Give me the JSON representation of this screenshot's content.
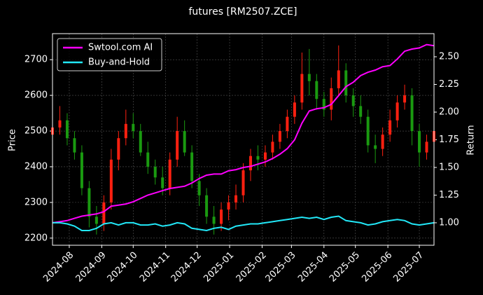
{
  "chart_data": {
    "type": "candlestick",
    "title": "futures [RM2507.ZCE]",
    "y_label": "Price",
    "y2_label": "Return",
    "x": [
      "2024-07-16",
      "2024-07-23",
      "2024-07-30",
      "2024-08-06",
      "2024-08-13",
      "2024-08-20",
      "2024-08-27",
      "2024-09-03",
      "2024-09-10",
      "2024-09-17",
      "2024-09-24",
      "2024-10-01",
      "2024-10-08",
      "2024-10-15",
      "2024-10-22",
      "2024-10-29",
      "2024-11-05",
      "2024-11-12",
      "2024-11-19",
      "2024-11-26",
      "2024-12-03",
      "2024-12-10",
      "2024-12-17",
      "2024-12-24",
      "2024-12-31",
      "2025-01-07",
      "2025-01-14",
      "2025-01-21",
      "2025-01-28",
      "2025-02-04",
      "2025-02-11",
      "2025-02-18",
      "2025-02-25",
      "2025-03-04",
      "2025-03-11",
      "2025-03-18",
      "2025-03-25",
      "2025-04-01",
      "2025-04-08",
      "2025-04-15",
      "2025-04-22",
      "2025-04-29",
      "2025-05-06",
      "2025-05-13",
      "2025-05-20",
      "2025-05-27",
      "2025-06-03",
      "2025-06-10",
      "2025-06-17",
      "2025-06-24",
      "2025-07-01",
      "2025-07-08",
      "2025-07-15"
    ],
    "candles": {
      "up_color": "#ff2010",
      "down_color": "#1a9a10",
      "open": [
        2490,
        2510,
        2530,
        2480,
        2440,
        2340,
        2260,
        2240,
        2300,
        2420,
        2480,
        2520,
        2500,
        2440,
        2400,
        2370,
        2340,
        2420,
        2500,
        2440,
        2360,
        2320,
        2260,
        2240,
        2280,
        2300,
        2320,
        2390,
        2430,
        2420,
        2440,
        2470,
        2500,
        2540,
        2580,
        2660,
        2640,
        2590,
        2560,
        2620,
        2670,
        2600,
        2570,
        2540,
        2460,
        2450,
        2490,
        2530,
        2580,
        2600,
        2500,
        2440,
        2470
      ],
      "high": [
        2560,
        2570,
        2550,
        2500,
        2460,
        2360,
        2290,
        2320,
        2450,
        2500,
        2560,
        2550,
        2520,
        2470,
        2420,
        2400,
        2440,
        2540,
        2530,
        2460,
        2380,
        2340,
        2290,
        2300,
        2320,
        2350,
        2410,
        2450,
        2460,
        2460,
        2490,
        2520,
        2560,
        2600,
        2720,
        2730,
        2660,
        2610,
        2650,
        2740,
        2690,
        2620,
        2600,
        2560,
        2490,
        2510,
        2560,
        2600,
        2630,
        2620,
        2520,
        2490,
        2520
      ],
      "low": [
        2470,
        2490,
        2460,
        2420,
        2320,
        2230,
        2210,
        2220,
        2280,
        2390,
        2460,
        2480,
        2430,
        2380,
        2350,
        2320,
        2320,
        2400,
        2430,
        2340,
        2290,
        2240,
        2210,
        2220,
        2250,
        2280,
        2300,
        2360,
        2390,
        2400,
        2420,
        2450,
        2480,
        2520,
        2560,
        2600,
        2560,
        2540,
        2530,
        2600,
        2580,
        2540,
        2520,
        2440,
        2410,
        2430,
        2470,
        2510,
        2560,
        2460,
        2400,
        2420,
        2440
      ],
      "close": [
        2510,
        2530,
        2480,
        2440,
        2340,
        2260,
        2240,
        2300,
        2420,
        2480,
        2520,
        2500,
        2440,
        2400,
        2370,
        2340,
        2420,
        2500,
        2440,
        2360,
        2320,
        2260,
        2240,
        2280,
        2300,
        2320,
        2390,
        2430,
        2420,
        2440,
        2470,
        2500,
        2540,
        2580,
        2660,
        2640,
        2590,
        2560,
        2620,
        2670,
        2600,
        2570,
        2540,
        2460,
        2450,
        2490,
        2530,
        2580,
        2600,
        2500,
        2440,
        2470,
        2500
      ]
    },
    "series": [
      {
        "name": "Swtool.com AI",
        "color": "#ff00ff",
        "axis": "y2",
        "values": [
          1.0,
          1.01,
          1.02,
          1.04,
          1.06,
          1.07,
          1.08,
          1.1,
          1.15,
          1.16,
          1.17,
          1.19,
          1.22,
          1.25,
          1.27,
          1.29,
          1.31,
          1.32,
          1.33,
          1.36,
          1.4,
          1.43,
          1.44,
          1.44,
          1.47,
          1.48,
          1.5,
          1.51,
          1.53,
          1.55,
          1.58,
          1.62,
          1.67,
          1.75,
          1.9,
          2.01,
          2.03,
          2.04,
          2.07,
          2.15,
          2.23,
          2.27,
          2.33,
          2.36,
          2.38,
          2.41,
          2.42,
          2.48,
          2.55,
          2.57,
          2.58,
          2.61,
          2.6
        ]
      },
      {
        "name": "Buy-and-Hold",
        "color": "#22e8f8",
        "axis": "y2",
        "values": [
          1.0,
          1.0,
          0.99,
          0.97,
          0.93,
          0.93,
          0.95,
          0.99,
          1.0,
          0.98,
          1.0,
          1.0,
          0.98,
          0.98,
          0.99,
          0.97,
          0.98,
          1.0,
          0.99,
          0.95,
          0.94,
          0.93,
          0.95,
          0.96,
          0.94,
          0.97,
          0.98,
          0.99,
          0.99,
          1.0,
          1.01,
          1.02,
          1.03,
          1.04,
          1.05,
          1.04,
          1.05,
          1.03,
          1.05,
          1.06,
          1.02,
          1.01,
          1.0,
          0.98,
          0.99,
          1.01,
          1.02,
          1.03,
          1.02,
          0.99,
          0.98,
          0.99,
          1.0
        ]
      }
    ],
    "xlim": [
      "2024-07-16",
      "2025-07-15"
    ],
    "xticks": [
      {
        "value": "2024-08-01",
        "label": "2024-08"
      },
      {
        "value": "2024-09-01",
        "label": "2024-09"
      },
      {
        "value": "2024-10-01",
        "label": "2024-10"
      },
      {
        "value": "2024-11-01",
        "label": "2024-11"
      },
      {
        "value": "2024-12-01",
        "label": "2024-12"
      },
      {
        "value": "2025-01-01",
        "label": "2025-01"
      },
      {
        "value": "2025-02-01",
        "label": "2025-02"
      },
      {
        "value": "2025-03-01",
        "label": "2025-03"
      },
      {
        "value": "2025-04-01",
        "label": "2025-04"
      },
      {
        "value": "2025-05-01",
        "label": "2025-05"
      },
      {
        "value": "2025-06-01",
        "label": "2025-06"
      },
      {
        "value": "2025-07-01",
        "label": "2025-07"
      }
    ],
    "ylim": [
      2180,
      2773
    ],
    "yticks": [
      2200,
      2300,
      2400,
      2500,
      2600,
      2700
    ],
    "y2lim": [
      0.797,
      2.709
    ],
    "y2ticks": [
      {
        "value": 1.0,
        "label": "1.00"
      },
      {
        "value": 1.25,
        "label": "1.25"
      },
      {
        "value": 1.5,
        "label": "1.50"
      },
      {
        "value": 1.75,
        "label": "1.75"
      },
      {
        "value": 2.0,
        "label": "2.00"
      },
      {
        "value": 2.25,
        "label": "2.25"
      },
      {
        "value": 2.5,
        "label": "2.50"
      }
    ],
    "grid": true,
    "legend": "upper left"
  }
}
